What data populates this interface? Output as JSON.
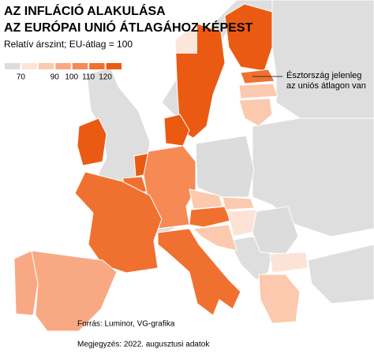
{
  "chart_data": {
    "type": "choropleth",
    "title": [
      "AZ INFLÁCIÓ ALAKULÁSA",
      "AZ EURÓPAI UNIÓ ÁTLAGÁHOZ KÉPEST"
    ],
    "subtitle": "Relatív árszint; EU-átlag = 100",
    "legend": {
      "lim": [
        60,
        130
      ],
      "ticks": [
        70,
        90,
        100,
        110,
        120
      ],
      "colors": [
        "#dcdcdc",
        "#fde3d6",
        "#fbc9ae",
        "#f8a983",
        "#f58a55",
        "#f0712f",
        "#eb5a12"
      ]
    },
    "values": [
      125,
      125,
      125,
      115,
      88,
      85,
      125,
      122,
      112,
      105,
      66,
      85,
      118,
      80,
      76,
      65,
      72,
      86,
      110,
      95,
      95,
      110,
      85
    ],
    "annotation": [
      "Észtország jelenleg",
      "az uniós átlagon van"
    ],
    "source": "Forrás: Luminor, VG-grafika",
    "note": "Megjegyzés: 2022. augusztusi adatok"
  }
}
